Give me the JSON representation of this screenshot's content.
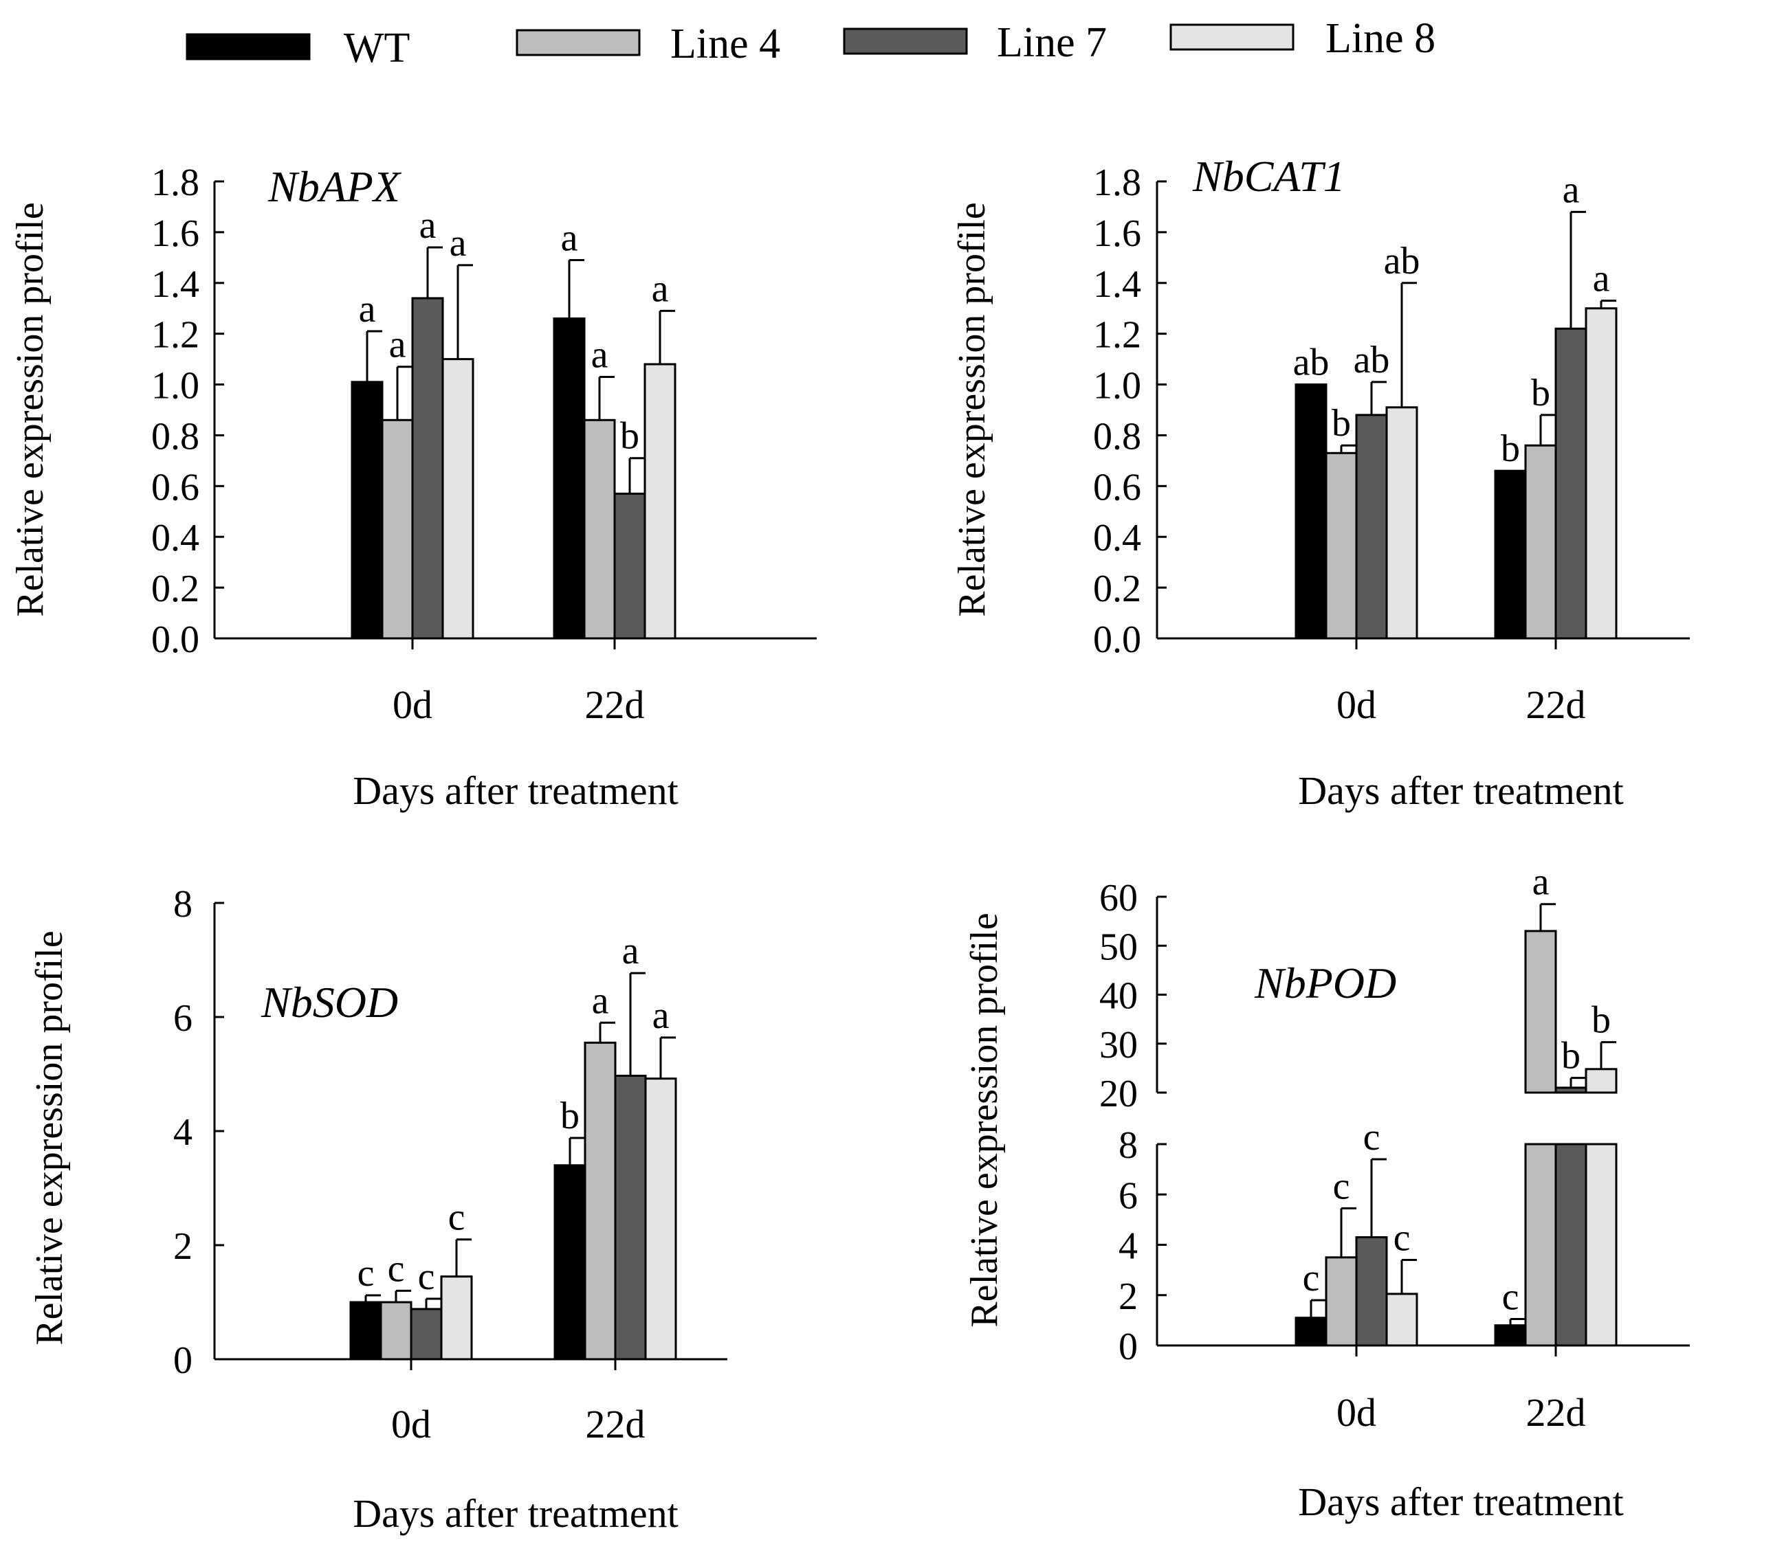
{
  "legend": {
    "entries": [
      {
        "name": "WT",
        "color": "#000000"
      },
      {
        "name": "Line 4",
        "color": "#bdbdbd"
      },
      {
        "name": "Line 7",
        "color": "#5a5a5a"
      },
      {
        "name": "Line 8",
        "color": "#e4e4e4"
      }
    ]
  },
  "chart_data": [
    {
      "type": "bar",
      "title": "NbAPX",
      "xlabel": "Days after treatment",
      "ylabel": "Relative expression profile",
      "categories": [
        "0d",
        "22d"
      ],
      "ylim": [
        0,
        1.8
      ],
      "yticks": [
        "0.0",
        "0.2",
        "0.4",
        "0.6",
        "0.8",
        "1.0",
        "1.2",
        "1.4",
        "1.6",
        "1.8"
      ],
      "series": [
        {
          "name": "WT",
          "values": [
            1.01,
            1.26
          ],
          "errors": [
            0.2,
            0.23
          ],
          "labels": [
            "a",
            "a"
          ]
        },
        {
          "name": "Line 4",
          "values": [
            0.86,
            0.86
          ],
          "errors": [
            0.21,
            0.17
          ],
          "labels": [
            "a",
            "a"
          ]
        },
        {
          "name": "Line 7",
          "values": [
            1.34,
            0.57
          ],
          "errors": [
            0.2,
            0.14
          ],
          "labels": [
            "a",
            "b"
          ]
        },
        {
          "name": "Line 8",
          "values": [
            1.1,
            1.08
          ],
          "errors": [
            0.37,
            0.21
          ],
          "labels": [
            "a",
            "a"
          ]
        }
      ]
    },
    {
      "type": "bar",
      "title": "NbCAT1",
      "xlabel": "Days after treatment",
      "ylabel": "Relative expression profile",
      "categories": [
        "0d",
        "22d"
      ],
      "ylim": [
        0,
        1.8
      ],
      "yticks": [
        "0.0",
        "0.2",
        "0.4",
        "0.6",
        "0.8",
        "1.0",
        "1.2",
        "1.4",
        "1.6",
        "1.8"
      ],
      "series": [
        {
          "name": "WT",
          "values": [
            1.0,
            0.66
          ],
          "errors": [
            0.0,
            0.0
          ],
          "labels": [
            "ab",
            "b"
          ]
        },
        {
          "name": "Line 4",
          "values": [
            0.73,
            0.76
          ],
          "errors": [
            0.03,
            0.12
          ],
          "labels": [
            "b",
            "b"
          ]
        },
        {
          "name": "Line 7",
          "values": [
            0.88,
            1.22
          ],
          "errors": [
            0.13,
            0.46
          ],
          "labels": [
            "ab",
            "a"
          ]
        },
        {
          "name": "Line 8",
          "values": [
            0.91,
            1.3
          ],
          "errors": [
            0.49,
            0.03
          ],
          "labels": [
            "ab",
            "a"
          ]
        }
      ]
    },
    {
      "type": "bar",
      "title": "NbSOD",
      "xlabel": "Days after treatment",
      "ylabel": "Relative expression profile",
      "categories": [
        "0d",
        "22d"
      ],
      "ylim": [
        0,
        8
      ],
      "yticks": [
        "0",
        "2",
        "4",
        "6",
        "8"
      ],
      "series": [
        {
          "name": "WT",
          "values": [
            1.0,
            3.4
          ],
          "errors": [
            0.12,
            0.48
          ],
          "labels": [
            "c",
            "b"
          ]
        },
        {
          "name": "Line 4",
          "values": [
            1.0,
            5.55
          ],
          "errors": [
            0.2,
            0.35
          ],
          "labels": [
            "c",
            "a"
          ]
        },
        {
          "name": "Line 7",
          "values": [
            0.88,
            4.97
          ],
          "errors": [
            0.18,
            1.8
          ],
          "labels": [
            "c",
            "a"
          ]
        },
        {
          "name": "Line 8",
          "values": [
            1.45,
            4.92
          ],
          "errors": [
            0.65,
            0.72
          ],
          "labels": [
            "c",
            "a"
          ]
        }
      ]
    },
    {
      "type": "bar",
      "title": "NbPOD",
      "xlabel": "Days after treatment",
      "ylabel": "Relative expression profile",
      "categories": [
        "0d",
        "22d"
      ],
      "ylim_lower": [
        0,
        8
      ],
      "yticks_lower": [
        "0",
        "2",
        "4",
        "6",
        "8"
      ],
      "ylim_upper": [
        20,
        60
      ],
      "yticks_upper": [
        "20",
        "30",
        "40",
        "50",
        "60"
      ],
      "series": [
        {
          "name": "WT",
          "values": [
            1.1,
            0.8
          ],
          "errors": [
            0.7,
            0.25
          ],
          "labels": [
            "c",
            "c"
          ]
        },
        {
          "name": "Line 4",
          "values": [
            3.5,
            53.0
          ],
          "errors": [
            1.95,
            5.5
          ],
          "labels": [
            "c",
            "a"
          ]
        },
        {
          "name": "Line 7",
          "values": [
            4.3,
            21.0
          ],
          "errors": [
            3.1,
            2.0
          ],
          "labels": [
            "c",
            "b"
          ]
        },
        {
          "name": "Line 8",
          "values": [
            2.05,
            24.8
          ],
          "errors": [
            1.35,
            5.5
          ],
          "labels": [
            "c",
            "b"
          ]
        }
      ]
    }
  ]
}
